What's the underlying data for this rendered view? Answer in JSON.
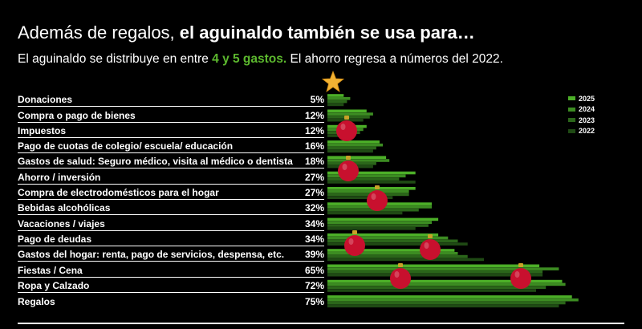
{
  "title_prefix": "Además de regalos, ",
  "title_bold": "el aguinaldo también se usa para…",
  "subtitle_pre": "El aguinaldo se distribuye en entre ",
  "subtitle_highlight": "4 y 5 gastos.",
  "subtitle_post": " El ahorro regresa a números del 2022.",
  "colors": {
    "background": "#000000",
    "text": "#ffffff",
    "highlight": "#5cb82e",
    "y2025": "#4caf28",
    "y2024": "#3c8c22",
    "y2023": "#2b661a",
    "y2022": "#1f4a14",
    "ornament": "#c8102e",
    "star": "#f2b233"
  },
  "chart_data": {
    "type": "bar",
    "orientation": "horizontal",
    "title": "Además de regalos, el aguinaldo también se usa para…",
    "categories": [
      "Donaciones",
      "Compra o pago de bienes",
      "Impuestos",
      "Pago de cuotas de colegio/ escuela/ educación",
      "Gastos de salud: Seguro médico, visita al médico o dentista",
      "Ahorro / inversión",
      "Compra de electrodomésticos para el hogar",
      "Bebidas alcohólicas",
      "Vacaciones / viajes",
      "Pago de deudas",
      "Gastos del hogar: renta, pago de servicios, despensa, etc.",
      "Fiestas / Cena",
      "Ropa y Calzado",
      "Regalos"
    ],
    "value_labels": [
      "5%",
      "12%",
      "12%",
      "16%",
      "18%",
      "27%",
      "27%",
      "32%",
      "34%",
      "34%",
      "39%",
      "65%",
      "72%",
      "75%"
    ],
    "series": [
      {
        "name": "2025",
        "values": [
          5,
          12,
          12,
          16,
          18,
          27,
          27,
          32,
          34,
          34,
          39,
          65,
          72,
          75
        ]
      },
      {
        "name": "2024",
        "values": [
          7,
          14,
          11,
          17,
          19,
          24,
          25,
          32,
          32,
          37,
          40,
          71,
          73,
          77
        ]
      },
      {
        "name": "2023",
        "values": [
          6,
          13,
          10,
          15,
          15,
          22,
          25,
          28,
          31,
          40,
          43,
          66,
          67,
          73
        ]
      },
      {
        "name": "2022",
        "values": [
          5,
          11,
          8,
          14,
          14,
          27,
          20,
          23,
          27,
          43,
          48,
          66,
          64,
          71
        ]
      }
    ],
    "xlim": [
      0,
      80
    ],
    "legend": "right",
    "grid": false
  }
}
